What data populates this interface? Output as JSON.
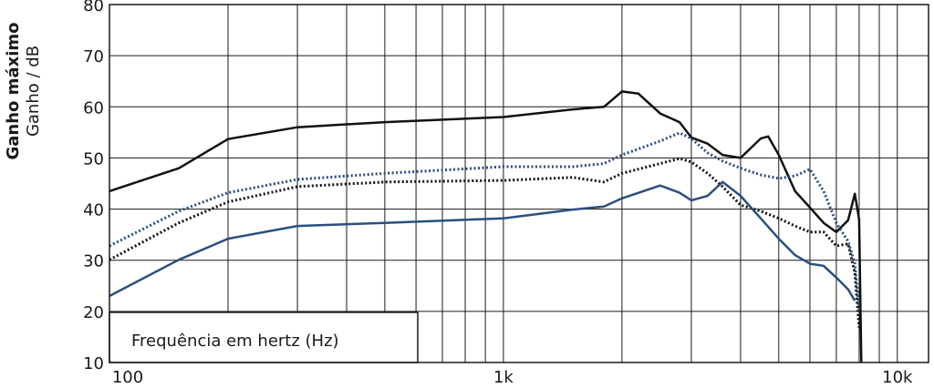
{
  "chart_data": {
    "type": "line",
    "ylabel_title": "Ganho máximo",
    "ylabel": "Ganho / dB",
    "xlabel": "Frequência em hertz (Hz)",
    "xscale": "log",
    "xlim": [
      100,
      12000
    ],
    "ylim": [
      10,
      80
    ],
    "yticks": [
      10,
      20,
      30,
      40,
      50,
      60,
      70,
      80
    ],
    "xticks": [
      100,
      {
        "value": 1000,
        "label": "1k"
      },
      {
        "value": 10000,
        "label": "10k"
      }
    ],
    "xgrid": [
      100,
      200,
      300,
      400,
      500,
      600,
      700,
      800,
      900,
      1000,
      2000,
      3000,
      4000,
      5000,
      6000,
      7000,
      8000,
      9000,
      10000
    ],
    "grid": true,
    "series": [
      {
        "color": "#111111",
        "style": "solid",
        "x": [
          100,
          150,
          200,
          300,
          500,
          1000,
          1500,
          1800,
          2000,
          2200,
          2500,
          2800,
          3000,
          3300,
          3600,
          4000,
          4500,
          4700,
          5000,
          5500,
          6000,
          6500,
          7000,
          7500,
          7800,
          8000,
          8100
        ],
        "values": [
          43.5,
          48,
          53.7,
          56,
          57,
          58,
          59.5,
          60,
          63,
          62.6,
          58.7,
          57,
          54,
          52.8,
          50.6,
          50,
          53.8,
          54.2,
          50.6,
          43.5,
          40.3,
          37.3,
          35.5,
          37.8,
          43,
          38,
          10
        ]
      },
      {
        "color": "#2b4f7e",
        "style": "dotted",
        "x": [
          100,
          150,
          200,
          300,
          500,
          1000,
          1500,
          1800,
          2000,
          2500,
          2800,
          3000,
          3300,
          3600,
          4000,
          4500,
          5000,
          5500,
          6000,
          6500,
          7000,
          7500,
          7800,
          8000
        ],
        "values": [
          32.8,
          39.6,
          43.2,
          45.8,
          47,
          48.3,
          48.3,
          48.9,
          50.6,
          53.3,
          54.9,
          53.8,
          51,
          49.4,
          48,
          46.7,
          46,
          46.5,
          47.8,
          43.5,
          37.3,
          33.7,
          29.3,
          20.3
        ]
      },
      {
        "color": "#111111",
        "style": "dotted",
        "x": [
          100,
          150,
          200,
          300,
          500,
          1000,
          1500,
          1800,
          2000,
          2500,
          2800,
          3000,
          3300,
          3600,
          4000,
          4500,
          5000,
          5500,
          6000,
          6500,
          7000,
          7500,
          7800,
          8000
        ],
        "values": [
          30.1,
          37.3,
          41.4,
          44.4,
          45.3,
          45.6,
          46.2,
          45.3,
          47,
          48.9,
          49.9,
          49.2,
          47,
          44.4,
          40.8,
          39.6,
          38.2,
          36.7,
          35.5,
          35.5,
          32.8,
          33.2,
          27.5,
          16.8
        ]
      },
      {
        "color": "#2b4f7e",
        "style": "solid",
        "x": [
          100,
          150,
          200,
          300,
          500,
          1000,
          1500,
          1800,
          2000,
          2500,
          2800,
          3000,
          3300,
          3600,
          4000,
          4500,
          5000,
          5500,
          6000,
          6500,
          7000,
          7500,
          7800
        ],
        "values": [
          23,
          30.1,
          34.2,
          36.7,
          37.3,
          38.2,
          39.9,
          40.5,
          42.1,
          44.6,
          43.2,
          41.7,
          42.6,
          45.3,
          42.6,
          38.2,
          34.2,
          31,
          29.3,
          28.9,
          26.6,
          24.3,
          22.1
        ]
      }
    ]
  }
}
